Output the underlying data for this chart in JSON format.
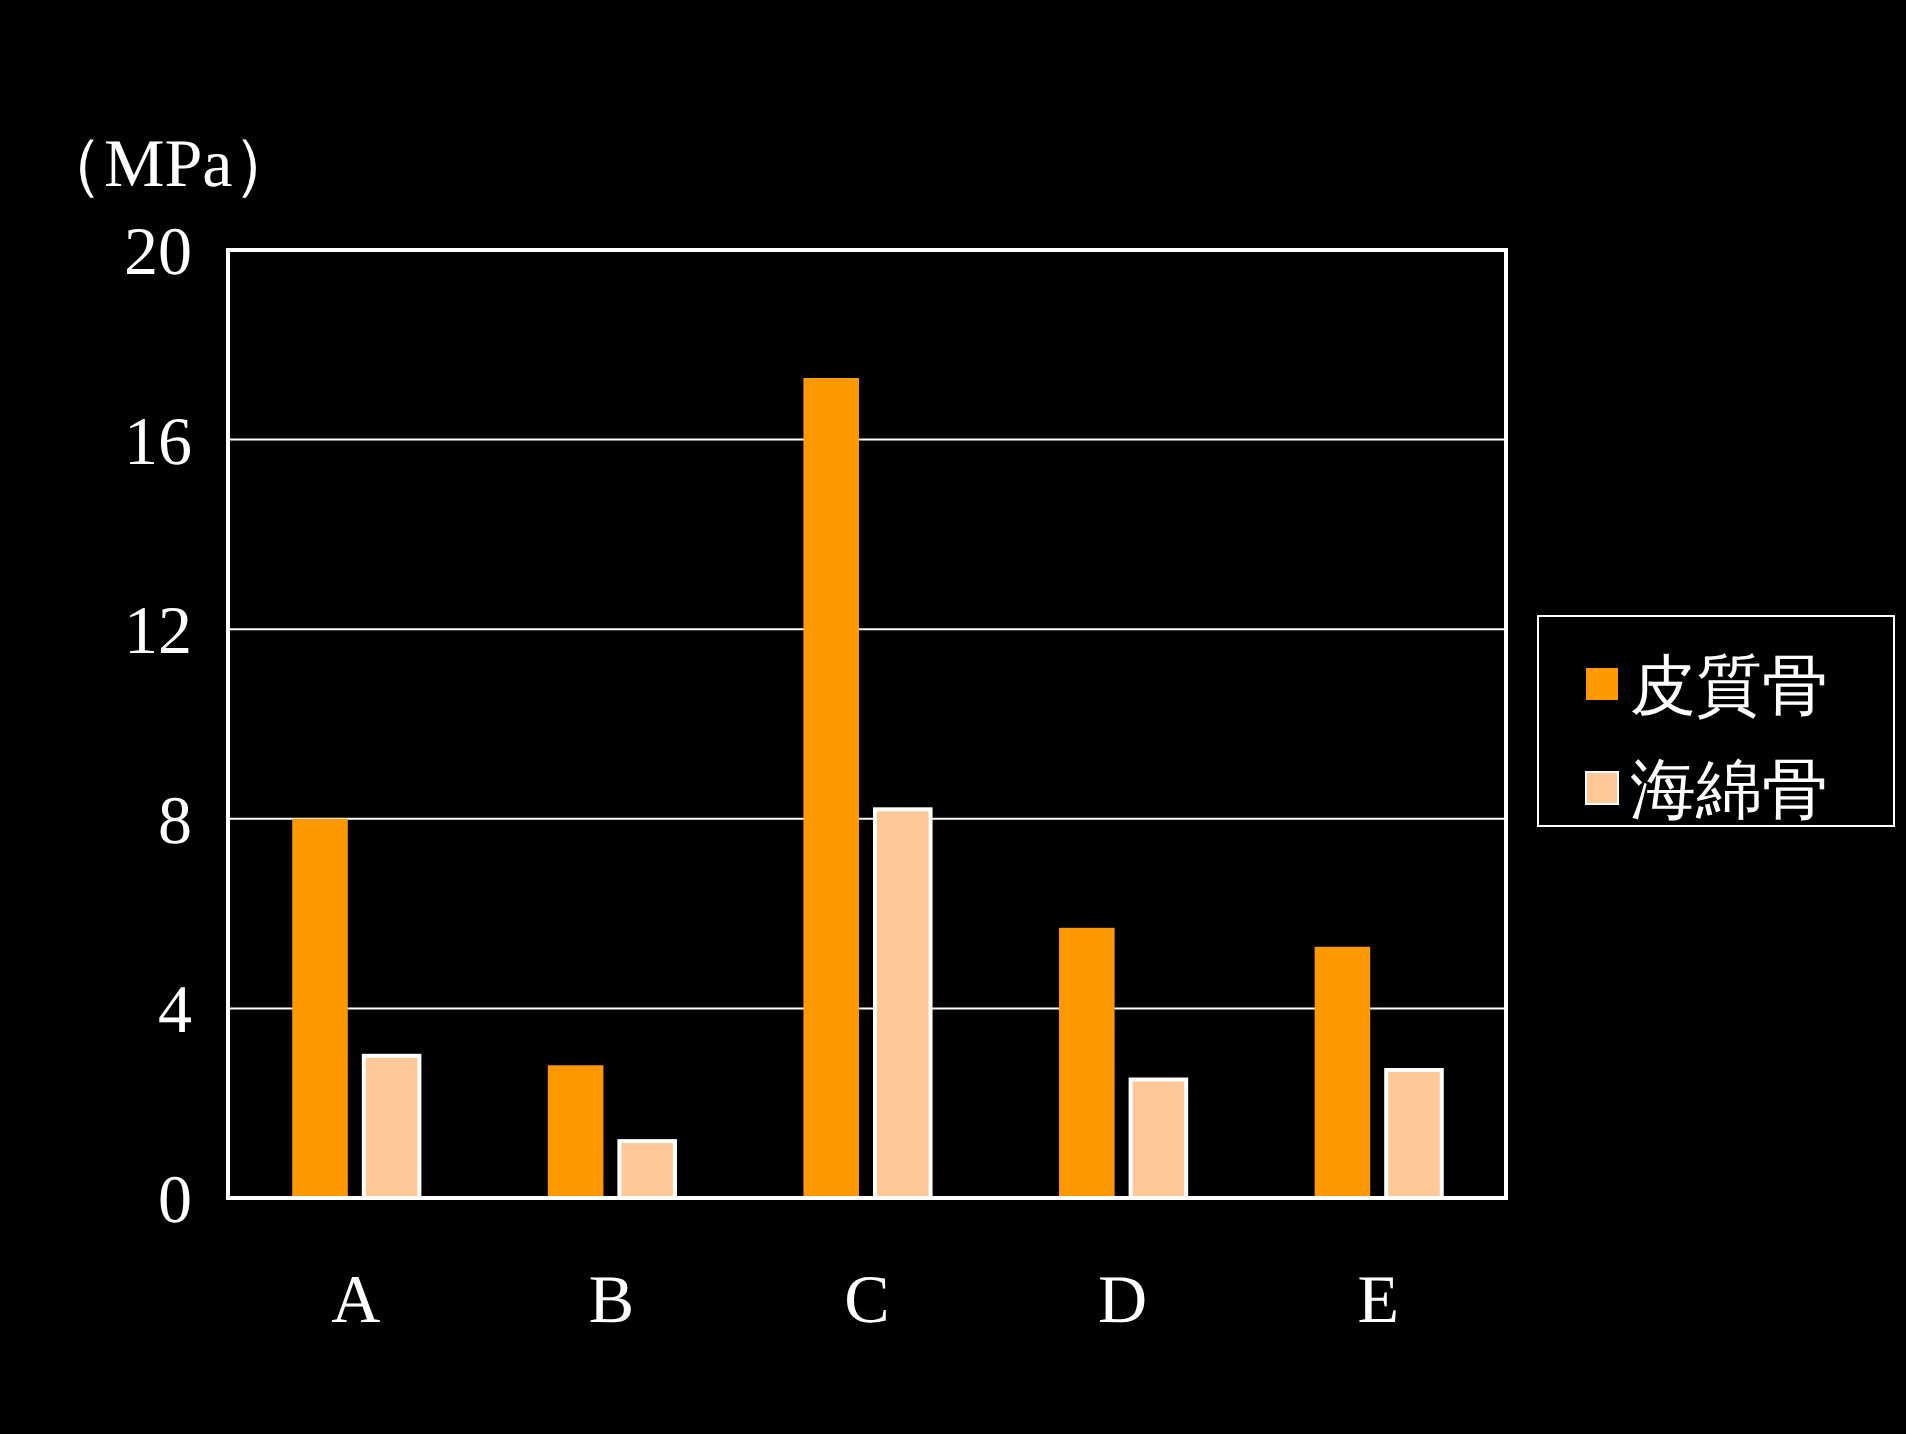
{
  "chart_data": {
    "type": "bar",
    "ylabel": "（MPa）",
    "categories": [
      "A",
      "B",
      "C",
      "D",
      "E"
    ],
    "series": [
      {
        "name": "皮質骨",
        "color": "#ff9900",
        "values": [
          8.0,
          2.8,
          17.3,
          5.7,
          5.3
        ]
      },
      {
        "name": "海綿骨",
        "color": "#ffc896",
        "values": [
          3.0,
          1.2,
          8.2,
          2.5,
          2.7
        ]
      }
    ],
    "ylim": [
      0,
      20
    ],
    "yticks": [
      0,
      4,
      8,
      12,
      16,
      20
    ],
    "grid": "y",
    "legend": "right"
  }
}
